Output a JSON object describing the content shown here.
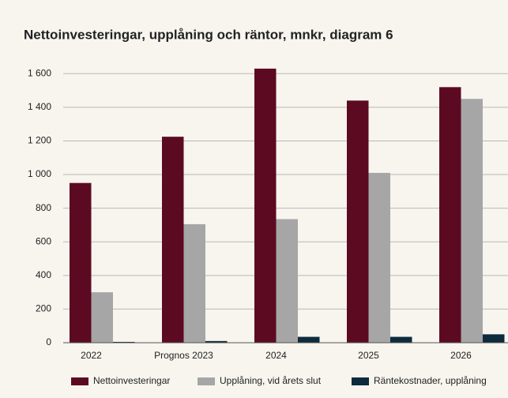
{
  "chart_data": {
    "type": "bar",
    "title": "Nettoinvesteringar, upplåning och räntor, mnkr, diagram 6",
    "categories": [
      "2022",
      "Prognos 2023",
      "2024",
      "2025",
      "2026"
    ],
    "series": [
      {
        "name": "Nettoinvesteringar",
        "color": "#5c0a22",
        "values": [
          950,
          1225,
          1630,
          1440,
          1520
        ]
      },
      {
        "name": "Upplåning, vid årets slut",
        "color": "#a6a6a6",
        "values": [
          300,
          705,
          735,
          1010,
          1450
        ]
      },
      {
        "name": "Räntekostnader, upplåning",
        "color": "#0e2a3d",
        "values": [
          5,
          10,
          35,
          35,
          50
        ]
      }
    ],
    "ylim": [
      0,
      1700
    ],
    "yticks": [
      0,
      200,
      400,
      600,
      800,
      {
        "value": 1000,
        "label": "1 000"
      },
      {
        "value": 1200,
        "label": "1 200"
      },
      {
        "value": 1400,
        "label": "1 400"
      },
      {
        "value": 1600,
        "label": "1 600"
      }
    ],
    "grid": true
  }
}
